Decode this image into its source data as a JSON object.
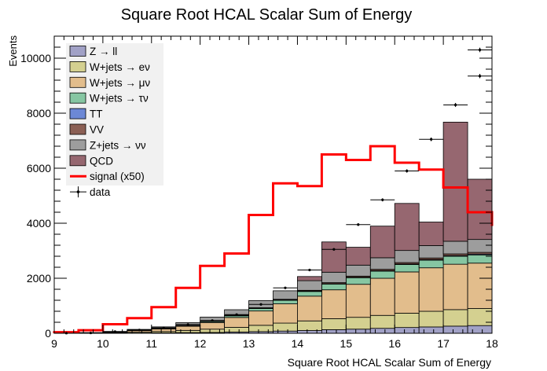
{
  "chart_data": {
    "type": "bar",
    "title": "Square Root HCAL Scalar Sum of Energy",
    "xlabel": "Square Root HCAL Scalar Sum of Energy",
    "ylabel": "Events",
    "xlim": [
      9,
      18
    ],
    "ylim": [
      0,
      10800
    ],
    "x_ticks": [
      9,
      10,
      11,
      12,
      13,
      14,
      15,
      16,
      17,
      18
    ],
    "y_ticks": [
      0,
      2000,
      4000,
      6000,
      8000,
      10000
    ],
    "x_tick_labels": [
      "9",
      "10",
      "11",
      "12",
      "13",
      "14",
      "15",
      "16",
      "17",
      "18"
    ],
    "y_tick_labels": [
      "0",
      "2000",
      "4000",
      "6000",
      "8000",
      "10000"
    ],
    "bin_edges": [
      9.0,
      9.5,
      10.0,
      10.5,
      11.0,
      11.5,
      12.0,
      12.5,
      13.0,
      13.5,
      14.0,
      14.5,
      15.0,
      15.5,
      16.0,
      16.5,
      17.0,
      17.5,
      18.0
    ],
    "legend_position": "top-left",
    "stack_order_bottom_to_top": [
      "Z → ll",
      "W+jets → eν",
      "W+jets → μν",
      "W+jets → τν",
      "TT",
      "VV",
      "Z+jets → νν",
      "QCD"
    ],
    "series": [
      {
        "name": "Z → ll",
        "kind": "stacked",
        "color": "#a1a1c6",
        "values": [
          0,
          2,
          5,
          10,
          15,
          25,
          30,
          45,
          60,
          80,
          100,
          130,
          150,
          180,
          210,
          230,
          260,
          280
        ]
      },
      {
        "name": "W+jets → eν",
        "kind": "stacked",
        "color": "#d4d090",
        "values": [
          2,
          5,
          15,
          30,
          50,
          80,
          120,
          170,
          230,
          290,
          350,
          400,
          430,
          470,
          520,
          570,
          600,
          620
        ]
      },
      {
        "name": "W+jets → μν",
        "kind": "stacked",
        "color": "#e2bd8c",
        "values": [
          3,
          10,
          25,
          55,
          90,
          150,
          240,
          360,
          520,
          700,
          900,
          1050,
          1200,
          1350,
          1500,
          1580,
          1650,
          1650
        ]
      },
      {
        "name": "W+jets → τν",
        "kind": "stacked",
        "color": "#86c6a2",
        "values": [
          0,
          1,
          3,
          6,
          10,
          20,
          35,
          60,
          90,
          130,
          170,
          210,
          240,
          260,
          270,
          280,
          290,
          300
        ]
      },
      {
        "name": "TT",
        "kind": "stacked",
        "color": "#6c88d6",
        "values": [
          0,
          0,
          0,
          1,
          2,
          3,
          4,
          6,
          8,
          10,
          12,
          15,
          17,
          20,
          20,
          22,
          25,
          30
        ]
      },
      {
        "name": "VV",
        "kind": "stacked",
        "color": "#8b5f54",
        "values": [
          0,
          1,
          2,
          4,
          6,
          8,
          10,
          15,
          20,
          25,
          30,
          35,
          40,
          45,
          50,
          55,
          60,
          60
        ]
      },
      {
        "name": "Z+jets → νν",
        "kind": "stacked",
        "color": "#9d9d9d",
        "values": [
          2,
          5,
          15,
          35,
          60,
          100,
          150,
          200,
          260,
          310,
          350,
          380,
          400,
          420,
          440,
          450,
          460,
          470
        ]
      },
      {
        "name": "QCD",
        "kind": "stacked",
        "color": "#966770",
        "values": [
          0,
          0,
          0,
          0,
          0,
          0,
          0,
          0,
          0,
          0,
          150,
          1100,
          650,
          1150,
          1710,
          856,
          4330,
          2190
        ]
      },
      {
        "name": "signal (x50)",
        "kind": "line",
        "color": "#ff0000",
        "values": [
          40,
          110,
          330,
          550,
          950,
          1650,
          2450,
          2900,
          4300,
          5450,
          5350,
          6500,
          6300,
          6800,
          6200,
          5950,
          5300,
          4400
        ]
      },
      {
        "name": "data",
        "kind": "points",
        "color": "#000000",
        "values": [
          5,
          12,
          60,
          120,
          200,
          320,
          460,
          680,
          1050,
          1650,
          2300,
          3050,
          3950,
          4850,
          5900,
          7050,
          8300,
          9350
        ],
        "extra_points": [
          {
            "x": 17.75,
            "y": 10300
          }
        ]
      }
    ],
    "signal_tail_after_18": 3900
  }
}
